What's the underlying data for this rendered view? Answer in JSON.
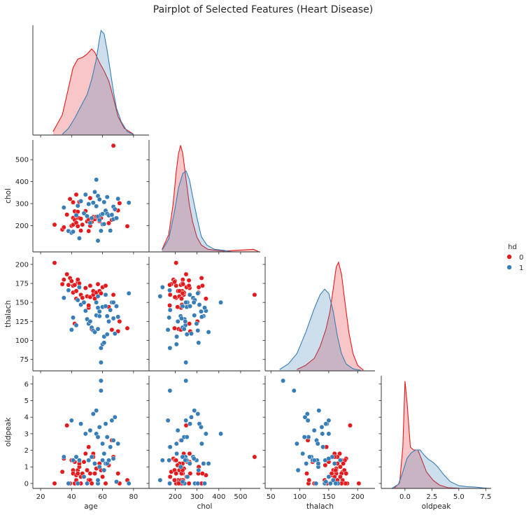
{
  "title": "Pairplot of Selected Features (Heart Disease)",
  "legend": {
    "title": "hd",
    "entries": [
      {
        "label": "0",
        "color": "#e41a1c"
      },
      {
        "label": "1",
        "color": "#377eb8"
      }
    ]
  },
  "chart_data": {
    "type": "scatter",
    "title": "Pairplot of Selected Features (Heart Disease)",
    "layout": "corner pairplot (lower triangle scatter, diagonal KDE)",
    "hue": "hd",
    "variables": [
      "age",
      "chol",
      "thalach",
      "oldpeak"
    ],
    "axes": {
      "age": {
        "lim": [
          15,
          90
        ],
        "ticks": [
          20,
          40,
          60,
          80
        ]
      },
      "chol": {
        "lim": [
          80,
          590
        ],
        "ticks": [
          200,
          300,
          400,
          500
        ]
      },
      "thalach": {
        "lim": [
          60,
          210
        ],
        "ticks": [
          75,
          100,
          125,
          150,
          175,
          200
        ]
      },
      "thalach_x": {
        "lim": [
          40,
          230
        ],
        "ticks": [
          50,
          100,
          150,
          200
        ]
      },
      "oldpeak": {
        "lim": [
          -0.3,
          6.5
        ],
        "ticks": [
          0,
          1,
          2,
          3,
          4,
          5,
          6
        ]
      },
      "oldpeak_x": {
        "lim": [
          -2.2,
          8.0
        ],
        "ticks": [
          0.0,
          2.5,
          5.0,
          7.5
        ],
        "tick_labels": [
          "0.0",
          "2.5",
          "5.0",
          "7.5"
        ]
      }
    },
    "series": [
      {
        "name": "0",
        "color": "#e41a1c",
        "age": [
          29,
          34,
          35,
          37,
          38,
          39,
          40,
          41,
          41,
          41,
          42,
          42,
          43,
          43,
          44,
          44,
          44,
          45,
          45,
          46,
          46,
          47,
          48,
          49,
          50,
          51,
          51,
          52,
          52,
          53,
          54,
          54,
          55,
          56,
          57,
          58,
          59,
          60,
          62,
          64,
          66,
          67,
          70,
          71,
          76
        ],
        "chol": [
          204,
          182,
          192,
          250,
          175,
          321,
          199,
          204,
          235,
          306,
          226,
          265,
          341,
          213,
          263,
          197,
          235,
          308,
          234,
          231,
          177,
          204,
          256,
          266,
          219,
          227,
          175,
          325,
          199,
          216,
          239,
          232,
          229,
          240,
          236,
          220,
          234,
          252,
          263,
          211,
          226,
          564,
          269,
          302,
          197
        ],
        "thalach": [
          202,
          174,
          180,
          187,
          173,
          182,
          178,
          172,
          163,
          163,
          173,
          122,
          155,
          165,
          179,
          177,
          180,
          170,
          175,
          147,
          160,
          156,
          150,
          169,
          158,
          143,
          146,
          172,
          157,
          115,
          160,
          165,
          155,
          163,
          174,
          165,
          162,
          170,
          172,
          144,
          114,
          160,
          112,
          125,
          116
        ],
        "oldpeak": [
          0,
          0.7,
          1.5,
          3.5,
          0,
          0,
          1.4,
          1.4,
          0.8,
          0.6,
          0,
          1.3,
          0.5,
          0.2,
          0,
          0.8,
          0.6,
          1,
          1.2,
          0,
          0.4,
          0.6,
          1.3,
          1.8,
          0.8,
          0.2,
          2.2,
          0.6,
          0.2,
          0,
          1.8,
          1.6,
          0.6,
          0.9,
          0.2,
          1.2,
          0.8,
          0.4,
          0,
          1.1,
          2.6,
          1.6,
          0.6,
          0,
          0.2
        ]
      },
      {
        "name": "1",
        "color": "#377eb8",
        "age": [
          35,
          38,
          40,
          41,
          43,
          44,
          45,
          46,
          48,
          49,
          50,
          51,
          52,
          53,
          54,
          55,
          56,
          56,
          57,
          57,
          57,
          58,
          58,
          59,
          59,
          60,
          60,
          61,
          61,
          62,
          62,
          63,
          63,
          64,
          65,
          66,
          67,
          67,
          68,
          69,
          70,
          77
        ],
        "chol": [
          282,
          175,
          167,
          172,
          247,
          290,
          142,
          311,
          256,
          341,
          243,
          298,
          212,
          234,
          304,
          353,
          409,
          288,
          335,
          241,
          131,
          319,
          225,
          176,
          249,
          253,
          206,
          307,
          207,
          267,
          268,
          254,
          330,
          246,
          177,
          249,
          286,
          229,
          274,
          234,
          322,
          304
        ],
        "thalach": [
          156,
          166,
          114,
          130,
          120,
          153,
          170,
          147,
          150,
          139,
          128,
          122,
          125,
          117,
          113,
          111,
          150,
          133,
          143,
          115,
          158,
          138,
          132,
          90,
          71,
          144,
          95,
          97,
          105,
          160,
          145,
          108,
          132,
          125,
          140,
          150,
          150,
          129,
          109,
          145,
          131,
          162
        ],
        "oldpeak": [
          1.6,
          0,
          3.8,
          1.4,
          1.6,
          0,
          1.4,
          3.6,
          0.4,
          3,
          0,
          1.4,
          3.2,
          1.6,
          4.2,
          1.2,
          3,
          4.4,
          0,
          2.8,
          0.2,
          3.4,
          1,
          5.6,
          6.2,
          1.4,
          2.4,
          0.8,
          1.8,
          1.2,
          3.6,
          2.8,
          1.2,
          1.4,
          2.2,
          3.8,
          1.5,
          2.6,
          4,
          0.1,
          2.4,
          0
        ]
      }
    ],
    "kde": {
      "age": {
        "0": [
          [
            28,
            0.002
          ],
          [
            34,
            0.012
          ],
          [
            38,
            0.028
          ],
          [
            41,
            0.04
          ],
          [
            44,
            0.045
          ],
          [
            47,
            0.046
          ],
          [
            50,
            0.048
          ],
          [
            53,
            0.051
          ],
          [
            55,
            0.049
          ],
          [
            58,
            0.043
          ],
          [
            61,
            0.038
          ],
          [
            64,
            0.032
          ],
          [
            67,
            0.022
          ],
          [
            70,
            0.011
          ],
          [
            74,
            0.004
          ],
          [
            80,
            0.0005
          ]
        ],
        "1": [
          [
            34,
            0.0005
          ],
          [
            38,
            0.004
          ],
          [
            42,
            0.01
          ],
          [
            46,
            0.017
          ],
          [
            50,
            0.024
          ],
          [
            53,
            0.033
          ],
          [
            56,
            0.045
          ],
          [
            58,
            0.057
          ],
          [
            59,
            0.062
          ],
          [
            61,
            0.06
          ],
          [
            63,
            0.05
          ],
          [
            65,
            0.038
          ],
          [
            67,
            0.026
          ],
          [
            69,
            0.016
          ],
          [
            72,
            0.008
          ],
          [
            76,
            0.002
          ],
          [
            80,
            0.0003
          ]
        ]
      },
      "chol": {
        "0": [
          [
            140,
            0.0003
          ],
          [
            170,
            0.002
          ],
          [
            190,
            0.0055
          ],
          [
            205,
            0.0095
          ],
          [
            215,
            0.0115
          ],
          [
            225,
            0.0125
          ],
          [
            235,
            0.0115
          ],
          [
            250,
            0.0085
          ],
          [
            265,
            0.0055
          ],
          [
            280,
            0.0035
          ],
          [
            300,
            0.0017
          ],
          [
            320,
            0.0008
          ],
          [
            350,
            0.0003
          ],
          [
            420,
            0.0001
          ],
          [
            560,
            0.0003
          ],
          [
            585,
            0
          ]
        ],
        "1": [
          [
            140,
            0.0002
          ],
          [
            170,
            0.0015
          ],
          [
            195,
            0.0045
          ],
          [
            215,
            0.0075
          ],
          [
            235,
            0.0092
          ],
          [
            250,
            0.0095
          ],
          [
            265,
            0.0085
          ],
          [
            280,
            0.0065
          ],
          [
            300,
            0.004
          ],
          [
            320,
            0.0018
          ],
          [
            345,
            0.0008
          ],
          [
            380,
            0.0003
          ],
          [
            420,
            0.0002
          ],
          [
            460,
            0
          ]
        ]
      },
      "thalach": {
        "0": [
          [
            95,
            0.0002
          ],
          [
            110,
            0.0008
          ],
          [
            125,
            0.0018
          ],
          [
            135,
            0.0035
          ],
          [
            145,
            0.006
          ],
          [
            152,
            0.0085
          ],
          [
            158,
            0.012
          ],
          [
            163,
            0.015
          ],
          [
            167,
            0.0157
          ],
          [
            172,
            0.014
          ],
          [
            178,
            0.01
          ],
          [
            185,
            0.0055
          ],
          [
            192,
            0.0025
          ],
          [
            200,
            0.0008
          ],
          [
            210,
            0.0001
          ]
        ],
        "1": [
          [
            65,
            0.0002
          ],
          [
            80,
            0.001
          ],
          [
            95,
            0.0025
          ],
          [
            110,
            0.0055
          ],
          [
            125,
            0.009
          ],
          [
            135,
            0.011
          ],
          [
            143,
            0.0118
          ],
          [
            150,
            0.0112
          ],
          [
            158,
            0.0085
          ],
          [
            165,
            0.005
          ],
          [
            172,
            0.0025
          ],
          [
            180,
            0.001
          ],
          [
            192,
            0.0003
          ],
          [
            205,
            0.0001
          ]
        ]
      },
      "oldpeak": {
        "0": [
          [
            -1.0,
            0.002
          ],
          [
            -0.5,
            0.04
          ],
          [
            -0.2,
            0.3
          ],
          [
            0,
            0.78
          ],
          [
            0.2,
            0.62
          ],
          [
            0.5,
            0.3
          ],
          [
            0.8,
            0.28
          ],
          [
            1.2,
            0.28
          ],
          [
            1.6,
            0.2
          ],
          [
            2.0,
            0.12
          ],
          [
            2.6,
            0.06
          ],
          [
            3.2,
            0.025
          ],
          [
            4,
            0.005
          ],
          [
            5,
            0.001
          ]
        ],
        "1": [
          [
            -1.2,
            0.002
          ],
          [
            -0.6,
            0.03
          ],
          [
            -0.2,
            0.12
          ],
          [
            0.2,
            0.22
          ],
          [
            0.6,
            0.26
          ],
          [
            1.0,
            0.28
          ],
          [
            1.4,
            0.28
          ],
          [
            1.8,
            0.24
          ],
          [
            2.2,
            0.21
          ],
          [
            2.6,
            0.19
          ],
          [
            3.0,
            0.16
          ],
          [
            3.6,
            0.1
          ],
          [
            4.2,
            0.05
          ],
          [
            5.0,
            0.02
          ],
          [
            5.8,
            0.012
          ],
          [
            6.5,
            0.01
          ],
          [
            7.2,
            0.004
          ],
          [
            7.8,
            0
          ]
        ]
      }
    }
  }
}
